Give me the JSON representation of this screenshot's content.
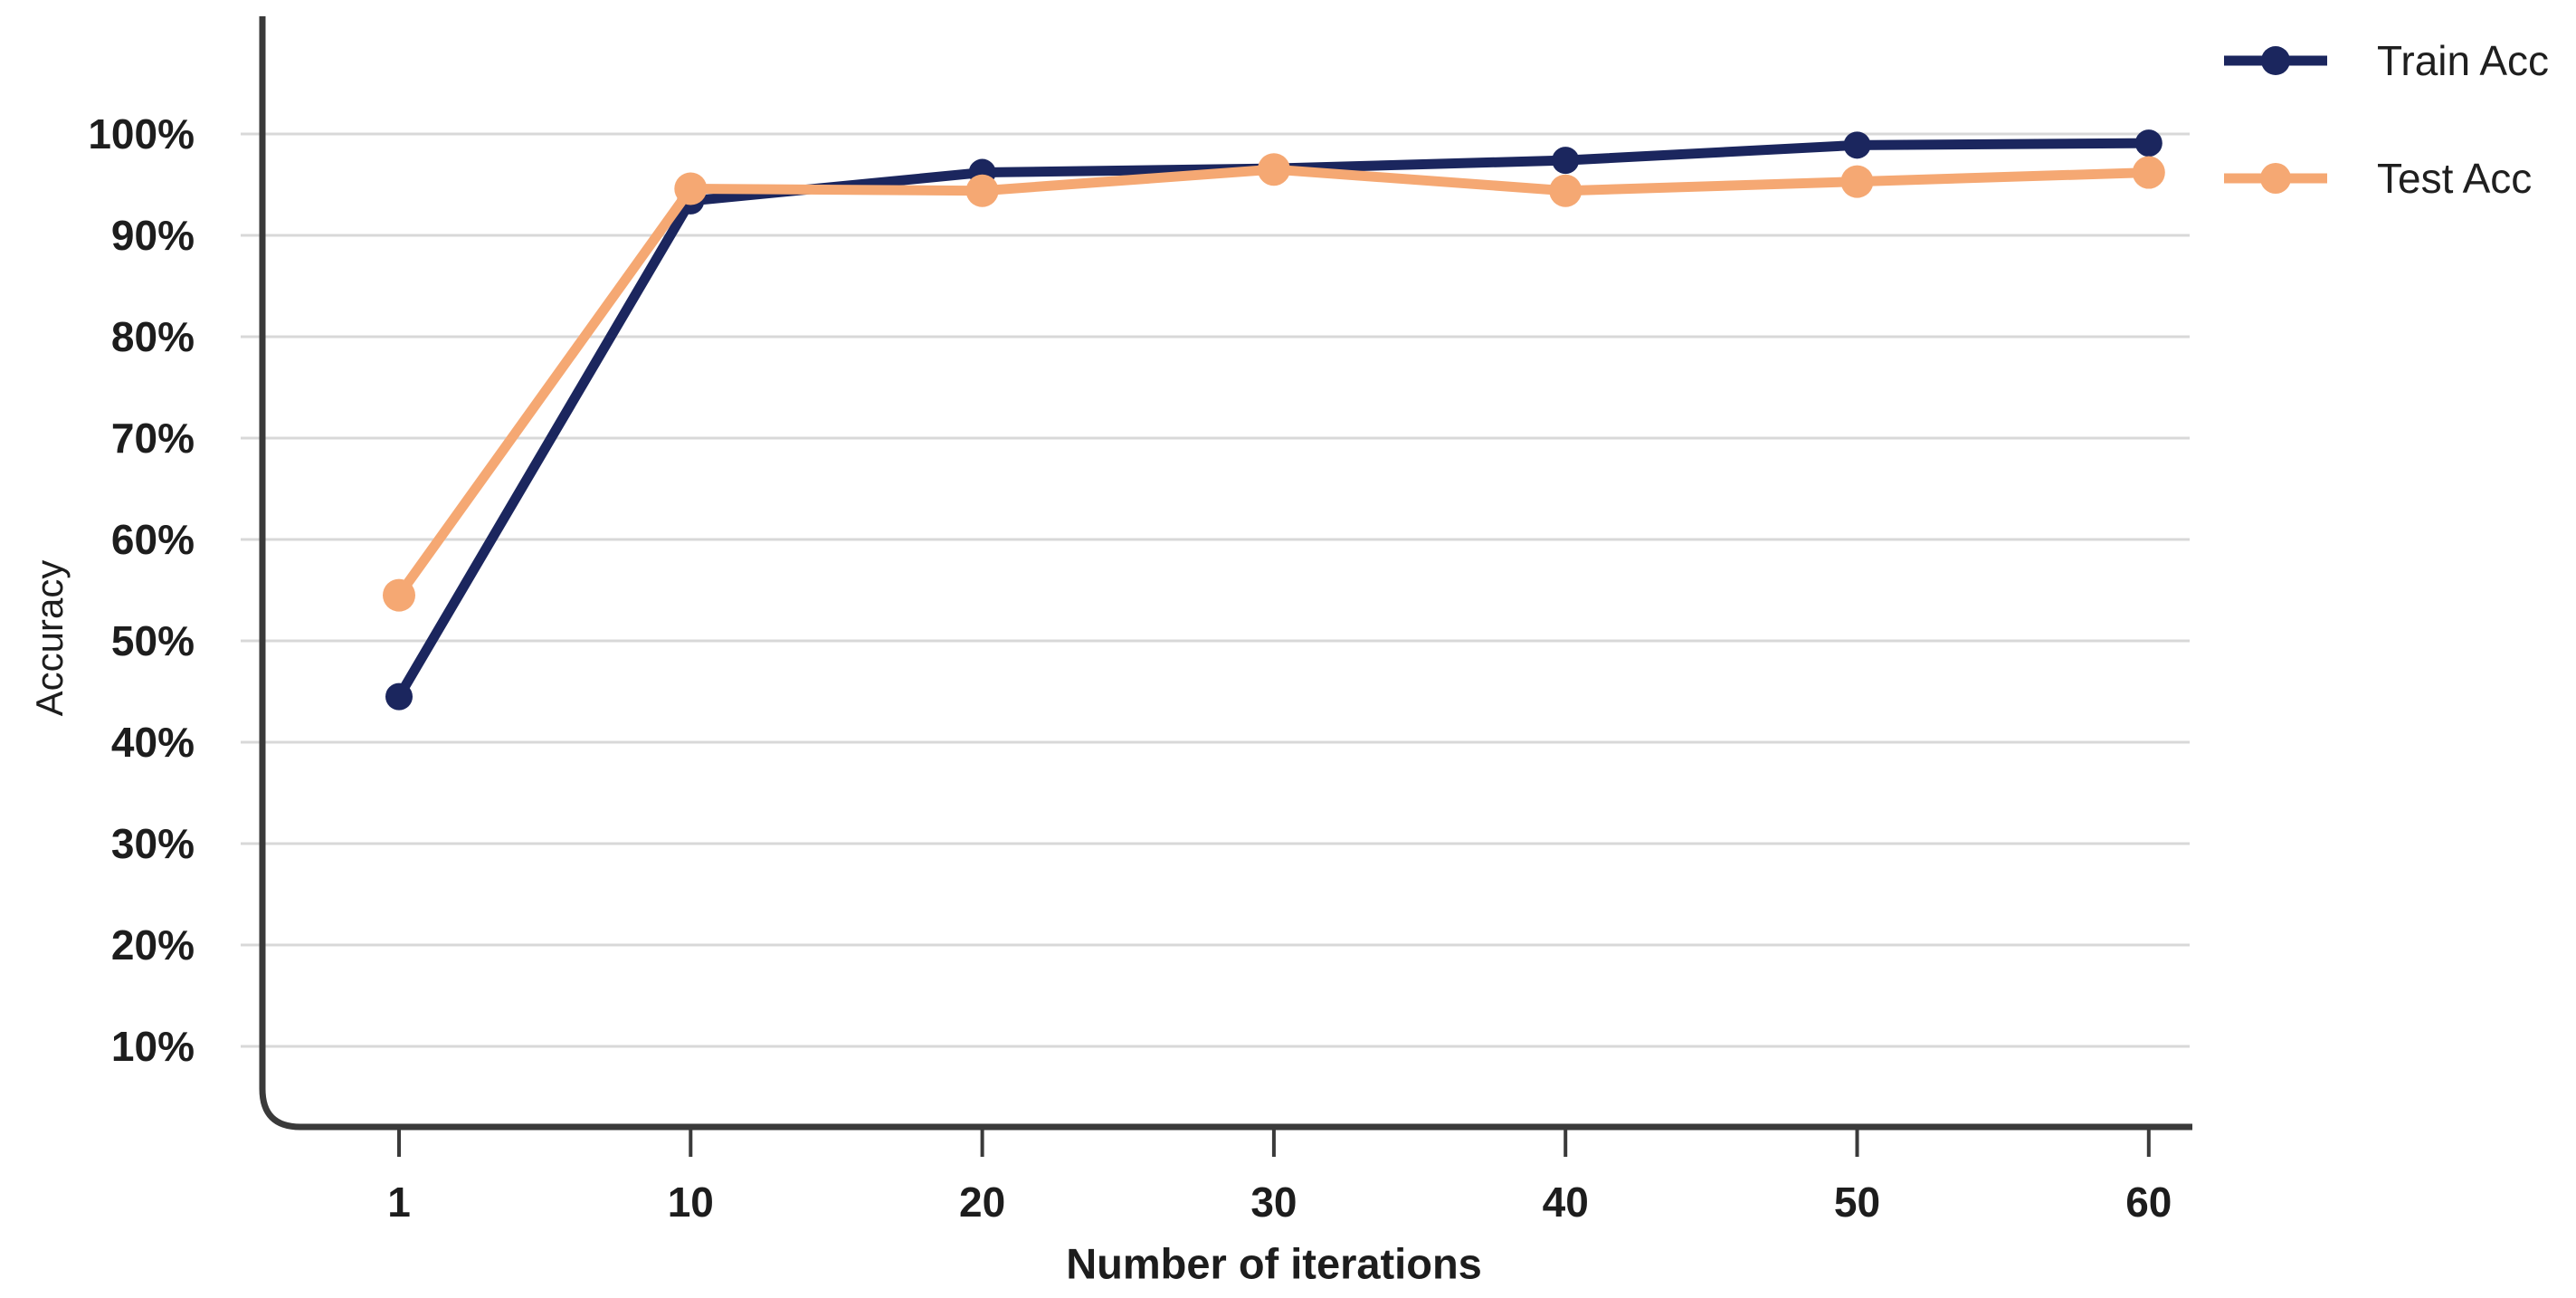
{
  "chart_data": {
    "type": "line",
    "title": "",
    "xlabel": "Number of iterations",
    "ylabel": "Accuracy",
    "x": [
      1,
      10,
      20,
      30,
      40,
      50,
      60
    ],
    "x_tick_labels": [
      "1",
      "10",
      "20",
      "30",
      "40",
      "50",
      "60"
    ],
    "y_ticks": [
      100,
      90,
      80,
      70,
      60,
      50,
      40,
      30,
      20,
      10
    ],
    "y_tick_suffix": "%",
    "ylim": [
      0,
      105
    ],
    "grid": "horizontal",
    "legend_position": "top-right",
    "marker": "circle",
    "series": [
      {
        "name": "Train Acc",
        "color": "#1b265e",
        "values": [
          44.5,
          93.4,
          96.2,
          96.6,
          97.4,
          98.9,
          99.1
        ]
      },
      {
        "name": "Test Acc",
        "color": "#f5a873",
        "values": [
          54.5,
          94.6,
          94.4,
          96.5,
          94.4,
          95.3,
          96.2
        ]
      }
    ],
    "axis_color": "#3a3a3a",
    "grid_color": "#d8d8d8",
    "text_color": "#1d1d1d",
    "background_color": "#ffffff"
  }
}
